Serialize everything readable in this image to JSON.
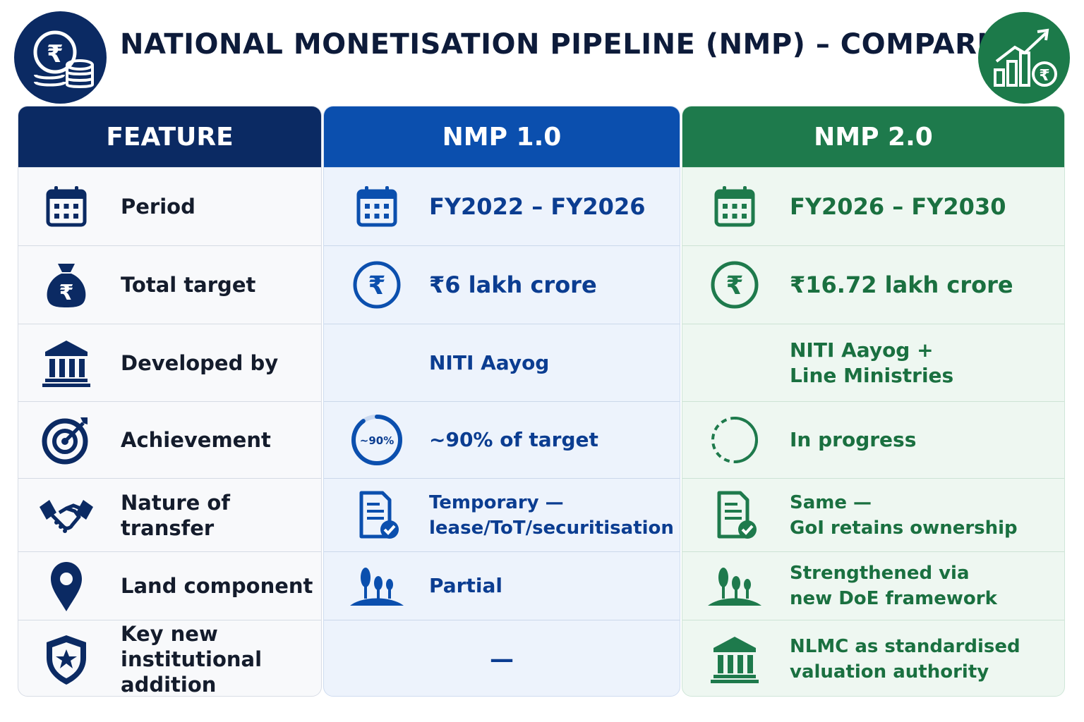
{
  "title": "NATIONAL MONETISATION PIPELINE (NMP) – COMPARISON",
  "header_icons": {
    "left": "rupee-coins-icon",
    "right": "growth-chart-rupee-icon"
  },
  "colors": {
    "feature_header": "#0b2a63",
    "nmp1_header": "#0b4fae",
    "nmp2_header": "#1e7a4c",
    "nmp1_text": "#0b3d91",
    "nmp2_text": "#1a7040"
  },
  "columns": {
    "feature": "FEATURE",
    "nmp1": "NMP 1.0",
    "nmp2": "NMP 2.0"
  },
  "rows": [
    {
      "feature": "Period",
      "feature_icon": "calendar-icon",
      "nmp1": "FY2022 – FY2026",
      "nmp1_icon": "calendar-icon",
      "nmp2": "FY2026 – FY2030",
      "nmp2_icon": "calendar-icon"
    },
    {
      "feature": "Total target",
      "feature_icon": "money-bag-icon",
      "nmp1": "₹6 lakh crore",
      "nmp1_icon": "rupee-circle-icon",
      "nmp2": "₹16.72 lakh crore",
      "nmp2_icon": "rupee-circle-icon"
    },
    {
      "feature": "Developed by",
      "feature_icon": "government-building-icon",
      "nmp1": "NITI Aayog",
      "nmp1_icon": "",
      "nmp2": "NITI Aayog +\nLine Ministries",
      "nmp2_icon": ""
    },
    {
      "feature": "Achievement",
      "feature_icon": "target-icon",
      "nmp1": "~90% of target",
      "nmp1_icon": "progress-ring-icon",
      "nmp1_icon_label": "~90%",
      "nmp1_progress": 0.9,
      "nmp2": "In progress",
      "nmp2_icon": "dashed-circle-icon"
    },
    {
      "feature": "Nature of transfer",
      "feature_icon": "handshake-icon",
      "nmp1": "Temporary —\nlease/ToT/securitisation",
      "nmp1_icon": "document-check-icon",
      "nmp2": "Same —\nGoI retains ownership",
      "nmp2_icon": "document-check-icon"
    },
    {
      "feature": "Land component",
      "feature_icon": "location-pin-icon",
      "nmp1": "Partial",
      "nmp1_icon": "trees-icon",
      "nmp2": "Strengthened via\nnew DoE framework",
      "nmp2_icon": "trees-icon"
    },
    {
      "feature": "Key new institutional\naddition",
      "feature_icon": "shield-star-icon",
      "nmp1": "—",
      "nmp1_icon": "",
      "nmp2": "NLMC as standardised\nvaluation authority",
      "nmp2_icon": "government-building-icon"
    }
  ]
}
